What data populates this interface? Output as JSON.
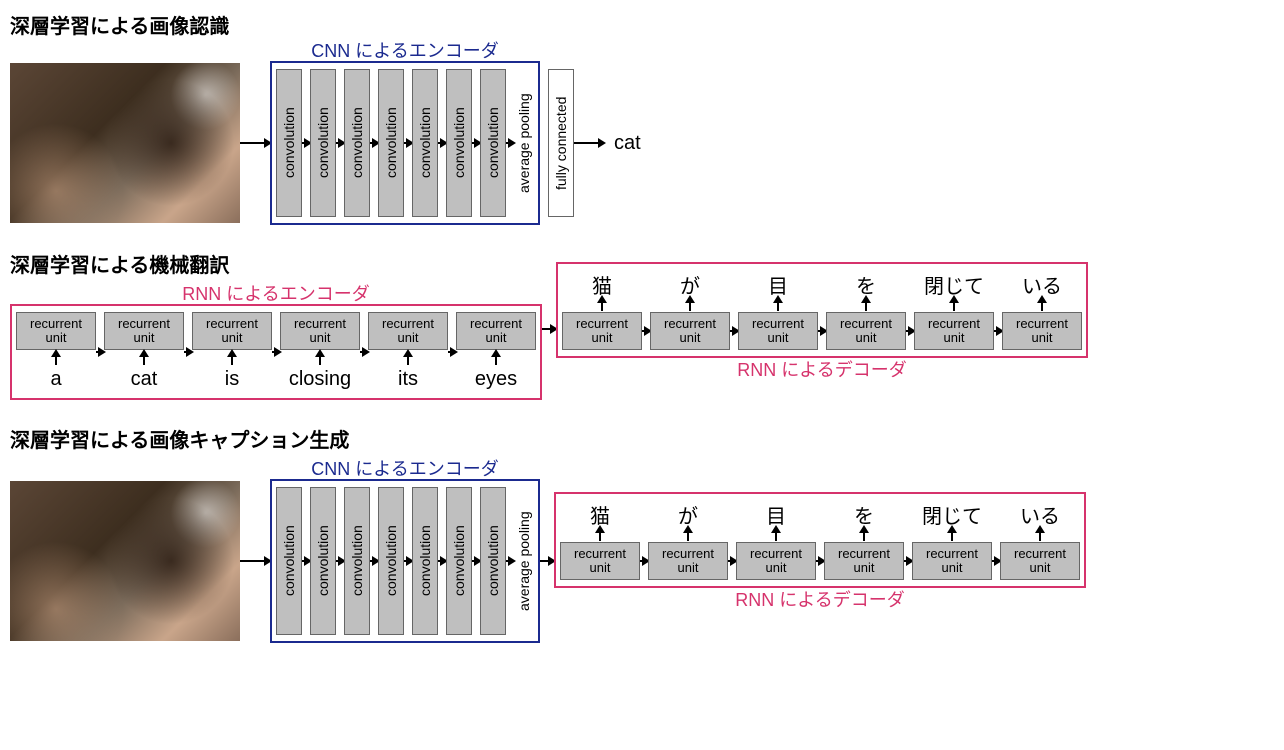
{
  "colors": {
    "cnn_border": "#1b2a8f",
    "cnn_label": "#1b2a8f",
    "rnn_border": "#d6336c",
    "rnn_label": "#d6336c",
    "block_fill": "#bfbfbf",
    "block_border": "#666666",
    "background": "#ffffff",
    "text": "#000000"
  },
  "fonts": {
    "title_size": 20,
    "label_size": 18,
    "block_text_size": 14,
    "ru_text_size": 13,
    "io_text_size": 20
  },
  "section1": {
    "title": "深層学習による画像認識",
    "encoder_label": "CNN によるエンコーダ",
    "conv_blocks": [
      "convolution",
      "convolution",
      "convolution",
      "convolution",
      "convolution",
      "convolution",
      "convolution"
    ],
    "avg_pool": "average pooling",
    "fc": "fully connected",
    "output": "cat"
  },
  "section2": {
    "title": "深層学習による機械翻訳",
    "encoder_label": "RNN によるエンコーダ",
    "decoder_label": "RNN によるデコーダ",
    "encoder_units": [
      "recurrent unit",
      "recurrent unit",
      "recurrent unit",
      "recurrent unit",
      "recurrent unit",
      "recurrent unit"
    ],
    "encoder_inputs": [
      "a",
      "cat",
      "is",
      "closing",
      "its",
      "eyes"
    ],
    "decoder_units": [
      "recurrent unit",
      "recurrent unit",
      "recurrent unit",
      "recurrent unit",
      "recurrent unit",
      "recurrent unit"
    ],
    "decoder_outputs": [
      "猫",
      "が",
      "目",
      "を",
      "閉じて",
      "いる"
    ]
  },
  "section3": {
    "title": "深層学習による画像キャプション生成",
    "encoder_label": "CNN によるエンコーダ",
    "decoder_label": "RNN によるデコーダ",
    "conv_blocks": [
      "convolution",
      "convolution",
      "convolution",
      "convolution",
      "convolution",
      "convolution",
      "convolution"
    ],
    "avg_pool": "average pooling",
    "decoder_units": [
      "recurrent unit",
      "recurrent unit",
      "recurrent unit",
      "recurrent unit",
      "recurrent unit",
      "recurrent unit"
    ],
    "decoder_outputs": [
      "猫",
      "が",
      "目",
      "を",
      "閉じて",
      "いる"
    ]
  }
}
